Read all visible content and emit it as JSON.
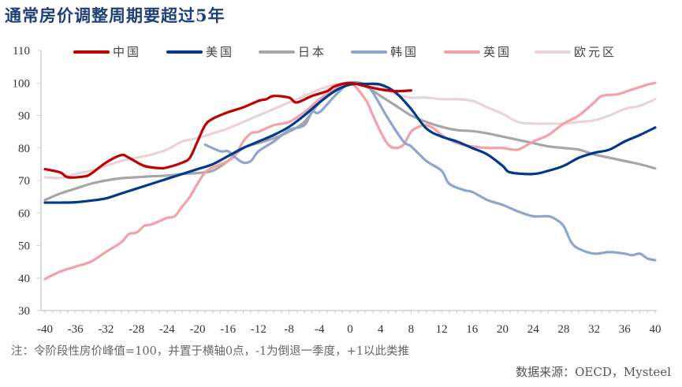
{
  "title": "通常房价调整周期要超过5年",
  "note": "注：令阶段性房价峰值=100，并置于横轴0点，-1为倒退一季度，+1以此类推",
  "source": "数据来源：OECD，Mysteel",
  "chart_data": {
    "type": "line",
    "title": "通常房价调整周期要超过5年",
    "xlabel": "",
    "ylabel": "",
    "xlim": [
      -40,
      40
    ],
    "ylim": [
      30,
      110
    ],
    "xticks": [
      -40,
      -36,
      -32,
      -28,
      -24,
      -20,
      -16,
      -12,
      -8,
      -4,
      0,
      4,
      8,
      12,
      16,
      20,
      24,
      28,
      32,
      36,
      40
    ],
    "yticks": [
      30,
      40,
      50,
      60,
      70,
      80,
      90,
      100,
      110
    ],
    "grid": false,
    "legend": "top",
    "series": [
      {
        "name": "中国",
        "color": "#C00000",
        "points": [
          [
            -40,
            73.5
          ],
          [
            -38,
            72.5
          ],
          [
            -37,
            71
          ],
          [
            -35,
            71.2
          ],
          [
            -34,
            72
          ],
          [
            -32,
            75.5
          ],
          [
            -30,
            77.8
          ],
          [
            -29,
            77
          ],
          [
            -27,
            74.5
          ],
          [
            -25,
            73.8
          ],
          [
            -24,
            74
          ],
          [
            -22,
            75.5
          ],
          [
            -21,
            77
          ],
          [
            -20,
            82
          ],
          [
            -19,
            87
          ],
          [
            -18,
            89
          ],
          [
            -16,
            91
          ],
          [
            -14,
            92.5
          ],
          [
            -12,
            94.5
          ],
          [
            -11,
            95
          ],
          [
            -10,
            96
          ],
          [
            -8,
            95.5
          ],
          [
            -7,
            94
          ],
          [
            -5,
            96
          ],
          [
            -3,
            97.5
          ],
          [
            -2,
            99
          ],
          [
            0,
            100
          ],
          [
            2,
            99
          ],
          [
            4,
            98
          ],
          [
            6,
            97.5
          ],
          [
            8,
            97.7
          ]
        ]
      },
      {
        "name": "美国",
        "color": "#003A8C",
        "points": [
          [
            -40,
            63.2
          ],
          [
            -38,
            63.2
          ],
          [
            -36,
            63.3
          ],
          [
            -34,
            63.8
          ],
          [
            -32,
            64.5
          ],
          [
            -30,
            66
          ],
          [
            -28,
            67.5
          ],
          [
            -26,
            69
          ],
          [
            -24,
            70.5
          ],
          [
            -22,
            72
          ],
          [
            -20,
            73.5
          ],
          [
            -18,
            75
          ],
          [
            -16,
            77.5
          ],
          [
            -14,
            80
          ],
          [
            -12,
            82
          ],
          [
            -10,
            84
          ],
          [
            -8,
            86.5
          ],
          [
            -6,
            90
          ],
          [
            -4,
            94
          ],
          [
            -2,
            97.5
          ],
          [
            0,
            99.5
          ],
          [
            2,
            99.7
          ],
          [
            4,
            99.5
          ],
          [
            6,
            97
          ],
          [
            8,
            92
          ],
          [
            10,
            86
          ],
          [
            12,
            83.5
          ],
          [
            14,
            82
          ],
          [
            16,
            80
          ],
          [
            18,
            78
          ],
          [
            20,
            74.5
          ],
          [
            21,
            72.5
          ],
          [
            24,
            72
          ],
          [
            26,
            73
          ],
          [
            28,
            74.5
          ],
          [
            30,
            77
          ],
          [
            32,
            78.5
          ],
          [
            34,
            79.5
          ],
          [
            36,
            82
          ],
          [
            38,
            84
          ],
          [
            40,
            86.3
          ]
        ]
      },
      {
        "name": "日本",
        "color": "#A6A6A6",
        "points": [
          [
            -40,
            64
          ],
          [
            -38,
            66
          ],
          [
            -36,
            67.5
          ],
          [
            -34,
            69
          ],
          [
            -32,
            70
          ],
          [
            -30,
            70.7
          ],
          [
            -28,
            71
          ],
          [
            -26,
            71.3
          ],
          [
            -24,
            71.5
          ],
          [
            -22,
            72
          ],
          [
            -20,
            72.3
          ],
          [
            -18,
            73
          ],
          [
            -16,
            76
          ],
          [
            -14,
            80
          ],
          [
            -12,
            81.5
          ],
          [
            -10,
            83
          ],
          [
            -8,
            85
          ],
          [
            -6,
            88
          ],
          [
            -4,
            94
          ],
          [
            -2,
            98
          ],
          [
            0,
            100
          ],
          [
            2,
            99
          ],
          [
            4,
            96
          ],
          [
            6,
            93
          ],
          [
            8,
            90
          ],
          [
            10,
            88
          ],
          [
            12,
            86.5
          ],
          [
            14,
            85.5
          ],
          [
            16,
            85.2
          ],
          [
            18,
            84.5
          ],
          [
            20,
            83.5
          ],
          [
            22,
            82.5
          ],
          [
            24,
            81.5
          ],
          [
            26,
            80.5
          ],
          [
            28,
            80
          ],
          [
            30,
            79.5
          ],
          [
            32,
            78
          ],
          [
            34,
            77
          ],
          [
            36,
            76
          ],
          [
            38,
            75
          ],
          [
            40,
            73.7
          ]
        ]
      },
      {
        "name": "韩国",
        "color": "#8EA5CC",
        "points": [
          [
            -19,
            81
          ],
          [
            -17,
            79
          ],
          [
            -16,
            79
          ],
          [
            -15,
            77
          ],
          [
            -14,
            75.5
          ],
          [
            -13,
            76
          ],
          [
            -12,
            79
          ],
          [
            -10,
            82
          ],
          [
            -8,
            85.5
          ],
          [
            -6,
            87
          ],
          [
            -5,
            91
          ],
          [
            -4,
            91
          ],
          [
            -2,
            96
          ],
          [
            0,
            100
          ],
          [
            2,
            99.5
          ],
          [
            3,
            97
          ],
          [
            5,
            89
          ],
          [
            7,
            82
          ],
          [
            8,
            80.5
          ],
          [
            10,
            76
          ],
          [
            12,
            73
          ],
          [
            13,
            69
          ],
          [
            15,
            67
          ],
          [
            16,
            66.5
          ],
          [
            18,
            64
          ],
          [
            20,
            62.5
          ],
          [
            22,
            60.5
          ],
          [
            24,
            59
          ],
          [
            26,
            59
          ],
          [
            27,
            58
          ],
          [
            28,
            56
          ],
          [
            29,
            51
          ],
          [
            30,
            49
          ],
          [
            32,
            47.5
          ],
          [
            34,
            48
          ],
          [
            36,
            47.5
          ],
          [
            37,
            47
          ],
          [
            38,
            47.5
          ],
          [
            39,
            46
          ],
          [
            40,
            45.5
          ]
        ]
      },
      {
        "name": "英国",
        "color": "#F4A0A8",
        "points": [
          [
            -40,
            39.7
          ],
          [
            -38,
            42
          ],
          [
            -36,
            43.5
          ],
          [
            -34,
            45
          ],
          [
            -32,
            48
          ],
          [
            -30,
            51
          ],
          [
            -29,
            53.5
          ],
          [
            -28,
            54
          ],
          [
            -27,
            56
          ],
          [
            -26,
            56.5
          ],
          [
            -25,
            57.5
          ],
          [
            -24,
            58.5
          ],
          [
            -23,
            59
          ],
          [
            -22,
            62
          ],
          [
            -21,
            65
          ],
          [
            -20,
            69
          ],
          [
            -19,
            72.5
          ],
          [
            -18,
            74
          ],
          [
            -16,
            76
          ],
          [
            -15,
            78
          ],
          [
            -14,
            82
          ],
          [
            -13,
            84.5
          ],
          [
            -12,
            85
          ],
          [
            -10,
            87
          ],
          [
            -8,
            88
          ],
          [
            -6,
            91
          ],
          [
            -4,
            95
          ],
          [
            -2,
            98
          ],
          [
            0,
            100
          ],
          [
            2,
            95
          ],
          [
            3,
            90
          ],
          [
            4,
            85
          ],
          [
            5,
            81
          ],
          [
            6,
            80
          ],
          [
            7,
            81
          ],
          [
            8,
            85
          ],
          [
            9,
            86.5
          ],
          [
            10,
            87
          ],
          [
            11,
            86
          ],
          [
            12,
            84
          ],
          [
            14,
            81.5
          ],
          [
            16,
            80.5
          ],
          [
            18,
            80
          ],
          [
            20,
            80
          ],
          [
            22,
            79.5
          ],
          [
            24,
            82
          ],
          [
            26,
            84
          ],
          [
            28,
            87.5
          ],
          [
            30,
            90
          ],
          [
            32,
            94
          ],
          [
            33,
            96
          ],
          [
            35,
            96.5
          ],
          [
            37,
            98
          ],
          [
            39,
            99.5
          ],
          [
            40,
            100
          ]
        ]
      },
      {
        "name": "欧元区",
        "color": "#EBD4D6",
        "points": [
          [
            -40,
            71
          ],
          [
            -38,
            70.8
          ],
          [
            -36,
            72
          ],
          [
            -34,
            73
          ],
          [
            -32,
            74.5
          ],
          [
            -30,
            76
          ],
          [
            -28,
            77
          ],
          [
            -26,
            78
          ],
          [
            -24,
            79.5
          ],
          [
            -22,
            82
          ],
          [
            -20,
            83
          ],
          [
            -18,
            84.5
          ],
          [
            -16,
            86
          ],
          [
            -14,
            88
          ],
          [
            -12,
            90
          ],
          [
            -10,
            92
          ],
          [
            -8,
            94
          ],
          [
            -6,
            96
          ],
          [
            -4,
            98
          ],
          [
            -2,
            99.5
          ],
          [
            0,
            100
          ],
          [
            2,
            99.5
          ],
          [
            4,
            99
          ],
          [
            6,
            96.5
          ],
          [
            8,
            95.5
          ],
          [
            10,
            95.5
          ],
          [
            12,
            95
          ],
          [
            14,
            95
          ],
          [
            16,
            94.5
          ],
          [
            18,
            92.5
          ],
          [
            20,
            90.5
          ],
          [
            22,
            88
          ],
          [
            24,
            87.5
          ],
          [
            26,
            87.5
          ],
          [
            28,
            87.5
          ],
          [
            30,
            88
          ],
          [
            32,
            88.5
          ],
          [
            34,
            90
          ],
          [
            36,
            92
          ],
          [
            38,
            93
          ],
          [
            40,
            95
          ]
        ]
      }
    ]
  }
}
